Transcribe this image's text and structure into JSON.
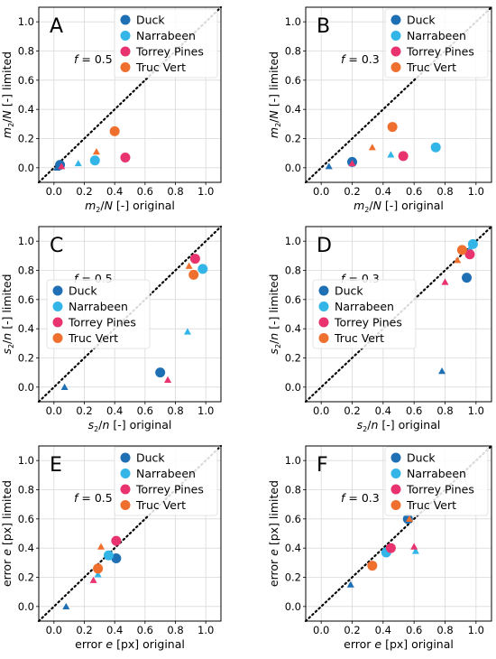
{
  "legend_entries": [
    {
      "name": "Duck",
      "color": "#1f6fb4"
    },
    {
      "name": "Narrabeen",
      "color": "#33b5e8"
    },
    {
      "name": "Torrey Pines",
      "color": "#e8336f"
    },
    {
      "name": "Truc Vert",
      "color": "#ef6f2e"
    }
  ],
  "tick_labels": [
    "0.0",
    "0.2",
    "0.4",
    "0.6",
    "0.8",
    "1.0"
  ],
  "chart_data": [
    {
      "type": "scatter",
      "panel": "A",
      "annotation": "f = 0.5",
      "xlabel": "m2/N [-] original",
      "ylabel": "m2/N [-] limited",
      "xlim": [
        -0.1,
        1.1
      ],
      "ylim": [
        -0.1,
        1.1
      ],
      "grid": true,
      "legend_placement": "top-right",
      "reference_line": "y = x (dotted)",
      "series": [
        {
          "name": "Duck",
          "circle": [
            0.04,
            0.02
          ],
          "triangle": [
            0.02,
            0.0
          ]
        },
        {
          "name": "Narrabeen",
          "circle": [
            0.27,
            0.05
          ],
          "triangle": [
            0.16,
            0.03
          ]
        },
        {
          "name": "Torrey Pines",
          "circle": [
            0.47,
            0.07
          ],
          "triangle": [
            0.05,
            0.01
          ]
        },
        {
          "name": "Truc Vert",
          "circle": [
            0.4,
            0.25
          ],
          "triangle": [
            0.28,
            0.11
          ]
        }
      ]
    },
    {
      "type": "scatter",
      "panel": "B",
      "annotation": "f = 0.3",
      "xlabel": "m2/N [-] original",
      "ylabel": "m2/N [-] limited",
      "xlim": [
        -0.1,
        1.1
      ],
      "ylim": [
        -0.1,
        1.1
      ],
      "grid": true,
      "legend_placement": "top-right",
      "reference_line": "y = x (dotted)",
      "series": [
        {
          "name": "Duck",
          "circle": [
            0.2,
            0.04
          ],
          "triangle": [
            0.05,
            0.01
          ]
        },
        {
          "name": "Narrabeen",
          "circle": [
            0.74,
            0.14
          ],
          "triangle": [
            0.45,
            0.09
          ]
        },
        {
          "name": "Torrey Pines",
          "circle": [
            0.53,
            0.08
          ],
          "triangle": [
            0.2,
            0.03
          ]
        },
        {
          "name": "Truc Vert",
          "circle": [
            0.46,
            0.28
          ],
          "triangle": [
            0.33,
            0.14
          ]
        }
      ]
    },
    {
      "type": "scatter",
      "panel": "C",
      "annotation": "f = 0.5",
      "xlabel": "s2/n [-] original",
      "ylabel": "s2/n [-] limited",
      "xlim": [
        -0.1,
        1.1
      ],
      "ylim": [
        -0.1,
        1.1
      ],
      "grid": true,
      "legend_placement": "center-left",
      "reference_line": "y = x (dotted)",
      "series": [
        {
          "name": "Duck",
          "circle": [
            0.7,
            0.1
          ],
          "triangle": [
            0.07,
            0.0
          ]
        },
        {
          "name": "Narrabeen",
          "circle": [
            0.98,
            0.81
          ],
          "triangle": [
            0.88,
            0.38
          ]
        },
        {
          "name": "Torrey Pines",
          "circle": [
            0.93,
            0.88
          ],
          "triangle": [
            0.75,
            0.05
          ]
        },
        {
          "name": "Truc Vert",
          "circle": [
            0.92,
            0.77
          ],
          "triangle": [
            0.89,
            0.83
          ]
        }
      ]
    },
    {
      "type": "scatter",
      "panel": "D",
      "annotation": "f = 0.3",
      "xlabel": "s2/n [-] original",
      "ylabel": "s2/n [-] limited",
      "xlim": [
        -0.1,
        1.1
      ],
      "ylim": [
        -0.1,
        1.1
      ],
      "grid": true,
      "legend_placement": "center-left",
      "reference_line": "y = x (dotted)",
      "series": [
        {
          "name": "Duck",
          "circle": [
            0.94,
            0.75
          ],
          "triangle": [
            0.78,
            0.11
          ]
        },
        {
          "name": "Narrabeen",
          "circle": [
            0.98,
            0.98
          ],
          "triangle": [
            0.96,
            0.95
          ]
        },
        {
          "name": "Torrey Pines",
          "circle": [
            0.96,
            0.91
          ],
          "triangle": [
            0.8,
            0.72
          ]
        },
        {
          "name": "Truc Vert",
          "circle": [
            0.91,
            0.94
          ],
          "triangle": [
            0.88,
            0.87
          ]
        }
      ]
    },
    {
      "type": "scatter",
      "panel": "E",
      "annotation": "f = 0.5",
      "xlabel": "error e [px] original",
      "ylabel": "error e [px] limited",
      "xlim": [
        -0.1,
        1.1
      ],
      "ylim": [
        -0.1,
        1.1
      ],
      "grid": true,
      "legend_placement": "top-right",
      "reference_line": "y = x (dotted)",
      "series": [
        {
          "name": "Duck",
          "circle": [
            0.41,
            0.33
          ],
          "triangle": [
            0.08,
            0.0
          ]
        },
        {
          "name": "Narrabeen",
          "circle": [
            0.36,
            0.35
          ],
          "triangle": [
            0.29,
            0.22
          ]
        },
        {
          "name": "Torrey Pines",
          "circle": [
            0.41,
            0.45
          ],
          "triangle": [
            0.26,
            0.18
          ]
        },
        {
          "name": "Truc Vert",
          "circle": [
            0.29,
            0.26
          ],
          "triangle": [
            0.31,
            0.41
          ]
        }
      ]
    },
    {
      "type": "scatter",
      "panel": "F",
      "annotation": "f = 0.3",
      "xlabel": "error e [px] original",
      "ylabel": "error e [px] limited",
      "xlim": [
        -0.1,
        1.1
      ],
      "ylim": [
        -0.1,
        1.1
      ],
      "grid": true,
      "legend_placement": "top-right",
      "reference_line": "y = x (dotted)",
      "series": [
        {
          "name": "Duck",
          "circle": [
            0.56,
            0.6
          ],
          "triangle": [
            0.19,
            0.15
          ]
        },
        {
          "name": "Narrabeen",
          "circle": [
            0.42,
            0.37
          ],
          "triangle": [
            0.61,
            0.38
          ]
        },
        {
          "name": "Torrey Pines",
          "circle": [
            0.45,
            0.4
          ],
          "triangle": [
            0.6,
            0.41
          ]
        },
        {
          "name": "Truc Vert",
          "circle": [
            0.33,
            0.28
          ],
          "triangle": [
            0.57,
            0.6
          ]
        }
      ]
    }
  ]
}
